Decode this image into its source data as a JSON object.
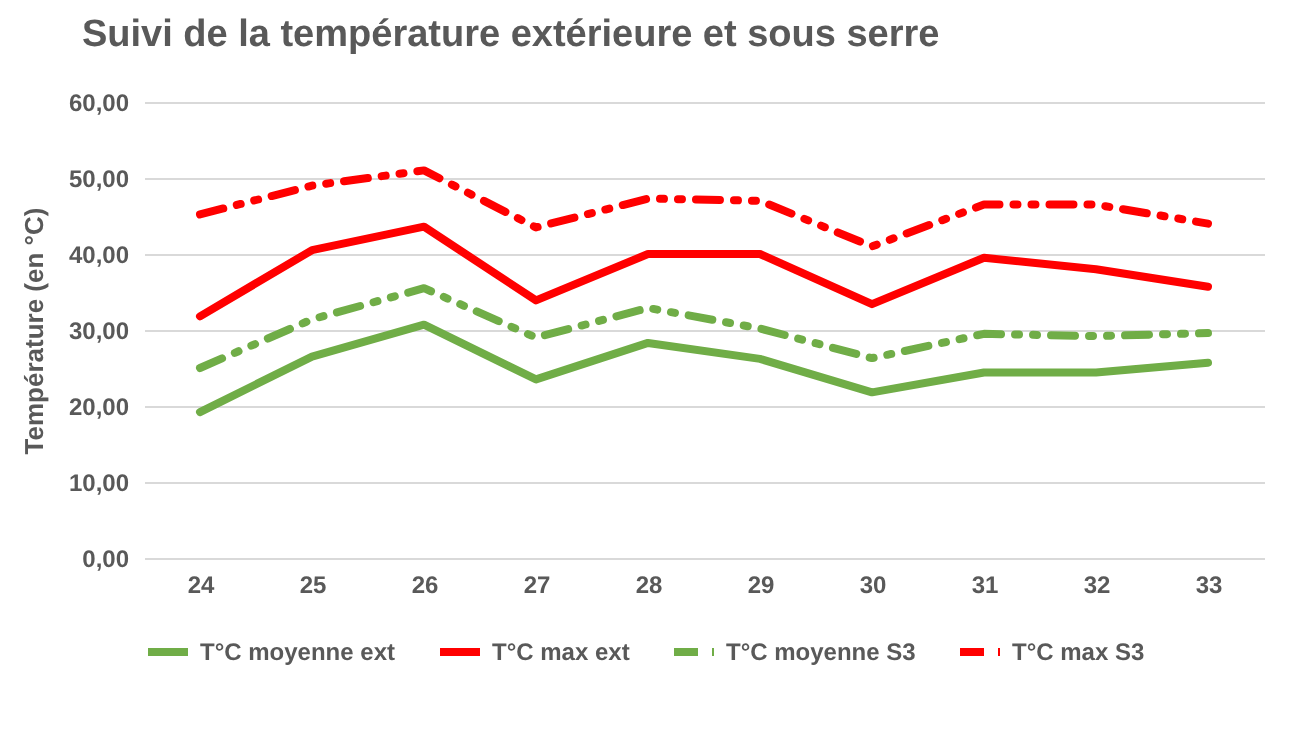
{
  "chart_data": {
    "type": "line",
    "title": "Suivi de la température extérieure et sous serre",
    "ylabel": "Température (en °C)",
    "categories": [
      "24",
      "25",
      "26",
      "27",
      "28",
      "29",
      "30",
      "31",
      "32",
      "33"
    ],
    "series": [
      {
        "name": "T°C moyenne ext",
        "color": "#70ad47",
        "line_style": "solid",
        "values": [
          19.2,
          26.5,
          30.7,
          23.5,
          28.3,
          26.2,
          21.8,
          24.4,
          24.4,
          25.7
        ]
      },
      {
        "name": "T°C max ext",
        "color": "#ff0000",
        "line_style": "solid",
        "values": [
          31.8,
          40.5,
          43.6,
          33.9,
          40,
          40,
          33.4,
          39.5,
          38,
          35.7
        ]
      },
      {
        "name": "T°C moyenne S3",
        "color": "#70ad47",
        "line_style": "dashed",
        "values": [
          25,
          31.4,
          35.5,
          29,
          32.9,
          30.2,
          26.3,
          29.5,
          29.2,
          29.6
        ]
      },
      {
        "name": "T°C max S3",
        "color": "#ff0000",
        "line_style": "dashed",
        "values": [
          45.2,
          49,
          51,
          43.5,
          47.3,
          47,
          41,
          46.5,
          46.5,
          44
        ]
      }
    ],
    "ylim": [
      0,
      60
    ],
    "yticks": [
      {
        "value": 0,
        "label": "0,00"
      },
      {
        "value": 10,
        "label": "10,00"
      },
      {
        "value": 20,
        "label": "20,00"
      },
      {
        "value": 30,
        "label": "30,00"
      },
      {
        "value": 40,
        "label": "40,00"
      },
      {
        "value": 50,
        "label": "50,00"
      },
      {
        "value": 60,
        "label": "60,00"
      }
    ],
    "grid": "y",
    "legend": "bottom",
    "marker": "none"
  }
}
